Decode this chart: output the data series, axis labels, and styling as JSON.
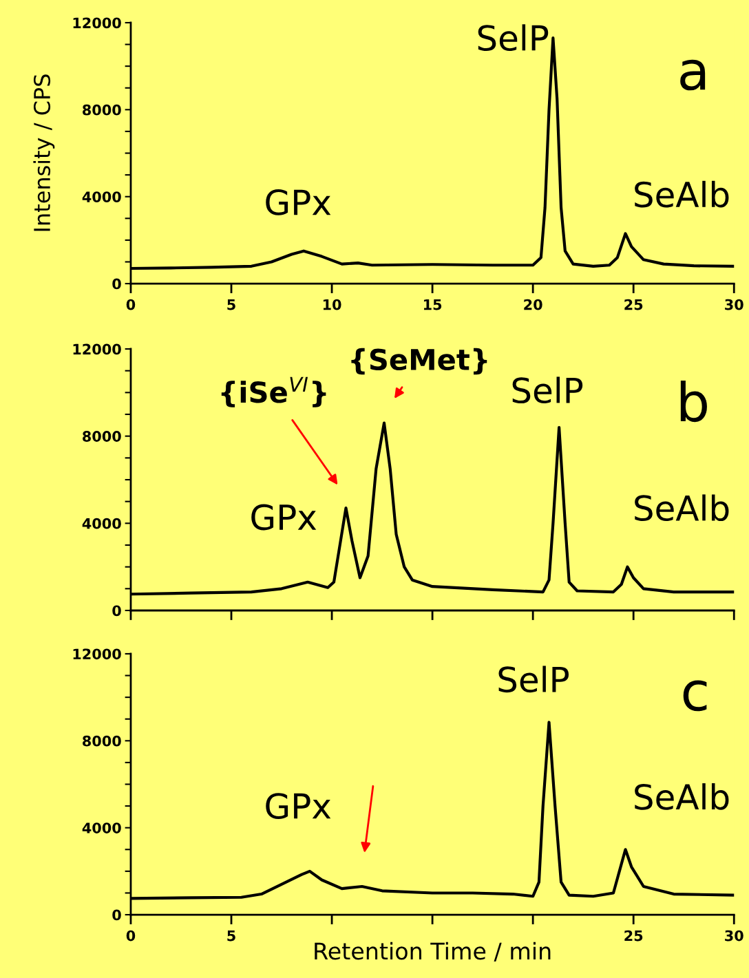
{
  "chart_data": [
    {
      "type": "line",
      "ylabel": "Intensity / CPS",
      "xlim": [
        0,
        30
      ],
      "xticks": [
        0,
        5,
        10,
        15,
        20,
        25,
        30
      ],
      "ylim": [
        0,
        12000
      ],
      "yticks": [
        0,
        {
          "value": 1000,
          "label": null
        },
        {
          "value": 2000,
          "label": null
        },
        {
          "value": 3000,
          "label": null
        },
        4000,
        {
          "value": 5000,
          "label": null
        },
        {
          "value": 6000,
          "label": null
        },
        {
          "value": 7000,
          "label": null
        },
        8000,
        {
          "value": 9000,
          "label": null
        },
        {
          "value": 10000,
          "label": null
        },
        {
          "value": 11000,
          "label": null
        },
        12000
      ],
      "grid": false,
      "legend": false,
      "marker": "none",
      "line_style": "solid",
      "series": [
        {
          "color": "#000000",
          "x": [
            0,
            2,
            4,
            6,
            7,
            8,
            8.6,
            9.5,
            10.5,
            11.3,
            12,
            15,
            18,
            20,
            20.4,
            20.6,
            20.8,
            21.0,
            21.2,
            21.4,
            21.6,
            22,
            23,
            23.8,
            24.2,
            24.6,
            24.9,
            25.5,
            26.5,
            28,
            30
          ],
          "values": [
            700,
            720,
            750,
            800,
            1000,
            1350,
            1500,
            1250,
            900,
            950,
            850,
            880,
            850,
            850,
            1200,
            3500,
            8000,
            11300,
            8500,
            3500,
            1500,
            900,
            800,
            850,
            1200,
            2300,
            1700,
            1100,
            900,
            820,
            800
          ]
        }
      ],
      "annotations": [
        "a",
        "GPx",
        "SelP",
        "SeAlb"
      ]
    },
    {
      "type": "line",
      "tick_labels": "y",
      "xlim": [
        0,
        30
      ],
      "xticks": [
        0,
        5,
        10,
        15,
        20,
        25,
        30
      ],
      "ylim": [
        0,
        12000
      ],
      "yticks": [
        0,
        {
          "value": 1000,
          "label": null
        },
        {
          "value": 2000,
          "label": null
        },
        {
          "value": 3000,
          "label": null
        },
        4000,
        {
          "value": 5000,
          "label": null
        },
        {
          "value": 6000,
          "label": null
        },
        {
          "value": 7000,
          "label": null
        },
        8000,
        {
          "value": 9000,
          "label": null
        },
        {
          "value": 10000,
          "label": null
        },
        {
          "value": 11000,
          "label": null
        },
        12000
      ],
      "grid": false,
      "legend": false,
      "marker": "none",
      "line_style": "solid",
      "series": [
        {
          "color": "#000000",
          "x": [
            0,
            3,
            6,
            7.5,
            8.8,
            9.8,
            10.1,
            10.4,
            10.7,
            11.0,
            11.4,
            11.8,
            12.2,
            12.6,
            12.9,
            13.2,
            13.6,
            14,
            15,
            18,
            20.5,
            20.8,
            21.0,
            21.3,
            21.6,
            21.8,
            22.2,
            24,
            24.4,
            24.7,
            25,
            25.5,
            27,
            30
          ],
          "values": [
            750,
            800,
            850,
            1000,
            1300,
            1050,
            1300,
            3000,
            4700,
            3200,
            1500,
            2500,
            6500,
            8600,
            6500,
            3500,
            2000,
            1400,
            1100,
            950,
            850,
            1400,
            4000,
            8400,
            4000,
            1300,
            900,
            850,
            1200,
            2000,
            1500,
            1000,
            850,
            850
          ]
        }
      ],
      "annotations": [
        "b",
        "{SeMet}",
        "{iSe$^{VI}$}",
        "SelP",
        "GPx",
        "SeAlb"
      ]
    },
    {
      "type": "line",
      "xlabel": "Retention Time / min",
      "xlim": [
        0,
        30
      ],
      "xticks": [
        0,
        5,
        {
          "value": 10,
          "label": null
        },
        {
          "value": 15,
          "label": null
        },
        {
          "value": 20,
          "label": null
        },
        25,
        30
      ],
      "ylim": [
        0,
        12000
      ],
      "yticks": [
        0,
        {
          "value": 1000,
          "label": null
        },
        {
          "value": 2000,
          "label": null
        },
        {
          "value": 3000,
          "label": null
        },
        4000,
        {
          "value": 5000,
          "label": null
        },
        {
          "value": 6000,
          "label": null
        },
        {
          "value": 7000,
          "label": null
        },
        8000,
        {
          "value": 9000,
          "label": null
        },
        {
          "value": 10000,
          "label": null
        },
        {
          "value": 11000,
          "label": null
        },
        12000
      ],
      "grid": false,
      "legend": false,
      "marker": "none",
      "line_style": "solid",
      "series": [
        {
          "color": "#000000",
          "x": [
            0,
            3,
            5.5,
            6.5,
            7.5,
            8.5,
            8.9,
            9.5,
            10.5,
            11.5,
            12.5,
            15,
            17,
            19,
            20,
            20.3,
            20.5,
            20.8,
            21.1,
            21.4,
            21.8,
            23,
            24,
            24.3,
            24.6,
            24.9,
            25.5,
            27,
            30
          ],
          "values": [
            750,
            780,
            800,
            950,
            1400,
            1850,
            2000,
            1600,
            1200,
            1300,
            1100,
            1000,
            1000,
            950,
            850,
            1500,
            5000,
            8850,
            5000,
            1500,
            900,
            850,
            1000,
            2000,
            3000,
            2200,
            1300,
            950,
            900
          ]
        }
      ],
      "annotations": [
        "c",
        "SelP",
        "GPx",
        "SeAlb"
      ]
    }
  ]
}
